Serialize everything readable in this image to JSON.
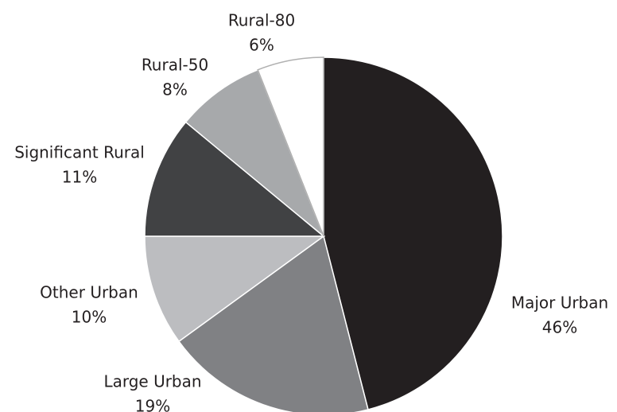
{
  "chart_data": {
    "type": "pie",
    "categories": [
      "Major Urban",
      "Large Urban",
      "Other Urban",
      "Significant Rural",
      "Rural-50",
      "Rural-80"
    ],
    "values": [
      46,
      19,
      10,
      11,
      8,
      6
    ],
    "value_labels": [
      "46%",
      "19%",
      "10%",
      "11%",
      "8%",
      "6%"
    ],
    "colors": [
      "#231f20",
      "#808184",
      "#bcbdc0",
      "#414244",
      "#a7a9ab",
      "#ffffff"
    ]
  }
}
